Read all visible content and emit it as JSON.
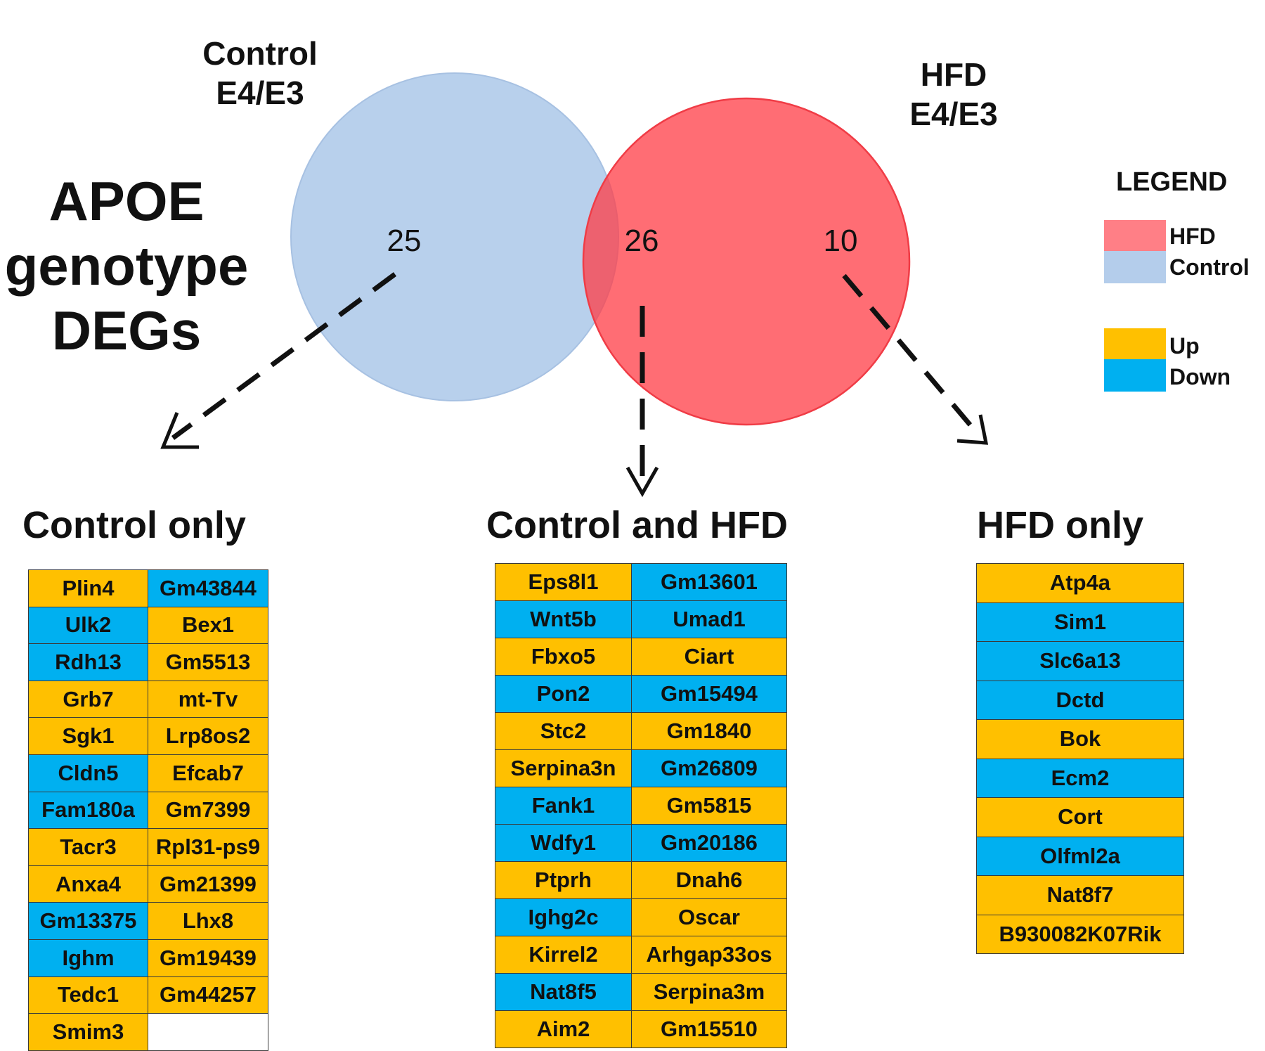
{
  "title": "APOE genotype DEGs",
  "title_lines": [
    "APOE",
    "genotype",
    "DEGs"
  ],
  "sets": {
    "control": {
      "lines": [
        "Control",
        "E4/E3"
      ],
      "color": "#B4CDEB"
    },
    "hfd": {
      "lines": [
        "HFD",
        "E4/E3"
      ],
      "color": "#FF5A5F"
    }
  },
  "counts": {
    "control_only": "25",
    "both": "26",
    "hfd_only": "10"
  },
  "legend": {
    "title": "LEGEND",
    "items": [
      {
        "label": "HFD",
        "color": "#FF7F86"
      },
      {
        "label": "Control",
        "color": "#B4CDEB"
      },
      {
        "label": "Up",
        "color": "#FFC000"
      },
      {
        "label": "Down",
        "color": "#00B0F0"
      }
    ]
  },
  "colors": {
    "up": "#FFC000",
    "down": "#00B0F0"
  },
  "sections": {
    "control_only": {
      "title": "Control only",
      "rows": [
        [
          {
            "g": "Plin4",
            "d": "up"
          },
          {
            "g": "Gm43844",
            "d": "down"
          }
        ],
        [
          {
            "g": "Ulk2",
            "d": "down"
          },
          {
            "g": "Bex1",
            "d": "up"
          }
        ],
        [
          {
            "g": "Rdh13",
            "d": "down"
          },
          {
            "g": "Gm5513",
            "d": "up"
          }
        ],
        [
          {
            "g": "Grb7",
            "d": "up"
          },
          {
            "g": "mt-Tv",
            "d": "up"
          }
        ],
        [
          {
            "g": "Sgk1",
            "d": "up"
          },
          {
            "g": "Lrp8os2",
            "d": "up"
          }
        ],
        [
          {
            "g": "Cldn5",
            "d": "down"
          },
          {
            "g": "Efcab7",
            "d": "up"
          }
        ],
        [
          {
            "g": "Fam180a",
            "d": "down"
          },
          {
            "g": "Gm7399",
            "d": "up"
          }
        ],
        [
          {
            "g": "Tacr3",
            "d": "up"
          },
          {
            "g": "Rpl31-ps9",
            "d": "up"
          }
        ],
        [
          {
            "g": "Anxa4",
            "d": "up"
          },
          {
            "g": "Gm21399",
            "d": "up"
          }
        ],
        [
          {
            "g": "Gm13375",
            "d": "down"
          },
          {
            "g": "Lhx8",
            "d": "up"
          }
        ],
        [
          {
            "g": "Ighm",
            "d": "down"
          },
          {
            "g": "Gm19439",
            "d": "up"
          }
        ],
        [
          {
            "g": "Tedc1",
            "d": "up"
          },
          {
            "g": "Gm44257",
            "d": "up"
          }
        ],
        [
          {
            "g": "Smim3",
            "d": "up"
          },
          {
            "g": "",
            "d": "blank"
          }
        ]
      ]
    },
    "both": {
      "title": "Control and HFD",
      "rows": [
        [
          {
            "g": "Eps8l1",
            "d": "up"
          },
          {
            "g": "Gm13601",
            "d": "down"
          }
        ],
        [
          {
            "g": "Wnt5b",
            "d": "down"
          },
          {
            "g": "Umad1",
            "d": "down"
          }
        ],
        [
          {
            "g": "Fbxo5",
            "d": "up"
          },
          {
            "g": "Ciart",
            "d": "up"
          }
        ],
        [
          {
            "g": "Pon2",
            "d": "down"
          },
          {
            "g": "Gm15494",
            "d": "down"
          }
        ],
        [
          {
            "g": "Stc2",
            "d": "up"
          },
          {
            "g": "Gm1840",
            "d": "up"
          }
        ],
        [
          {
            "g": "Serpina3n",
            "d": "up"
          },
          {
            "g": "Gm26809",
            "d": "down"
          }
        ],
        [
          {
            "g": "Fank1",
            "d": "down"
          },
          {
            "g": "Gm5815",
            "d": "up"
          }
        ],
        [
          {
            "g": "Wdfy1",
            "d": "down"
          },
          {
            "g": "Gm20186",
            "d": "down"
          }
        ],
        [
          {
            "g": "Ptprh",
            "d": "up"
          },
          {
            "g": "Dnah6",
            "d": "up"
          }
        ],
        [
          {
            "g": "Ighg2c",
            "d": "down"
          },
          {
            "g": "Oscar",
            "d": "up"
          }
        ],
        [
          {
            "g": "Kirrel2",
            "d": "up"
          },
          {
            "g": "Arhgap33os",
            "d": "up"
          }
        ],
        [
          {
            "g": "Nat8f5",
            "d": "down"
          },
          {
            "g": "Serpina3m",
            "d": "up"
          }
        ],
        [
          {
            "g": "Aim2",
            "d": "up"
          },
          {
            "g": "Gm15510",
            "d": "up"
          }
        ]
      ]
    },
    "hfd_only": {
      "title": "HFD only",
      "rows": [
        [
          {
            "g": "Atp4a",
            "d": "up"
          }
        ],
        [
          {
            "g": "Sim1",
            "d": "down"
          }
        ],
        [
          {
            "g": "Slc6a13",
            "d": "down"
          }
        ],
        [
          {
            "g": "Dctd",
            "d": "down"
          }
        ],
        [
          {
            "g": "Bok",
            "d": "up"
          }
        ],
        [
          {
            "g": "Ecm2",
            "d": "down"
          }
        ],
        [
          {
            "g": "Cort",
            "d": "up"
          }
        ],
        [
          {
            "g": "Olfml2a",
            "d": "down"
          }
        ],
        [
          {
            "g": "Nat8f7",
            "d": "up"
          }
        ],
        [
          {
            "g": "B930082K07Rik",
            "d": "up"
          }
        ]
      ]
    }
  }
}
